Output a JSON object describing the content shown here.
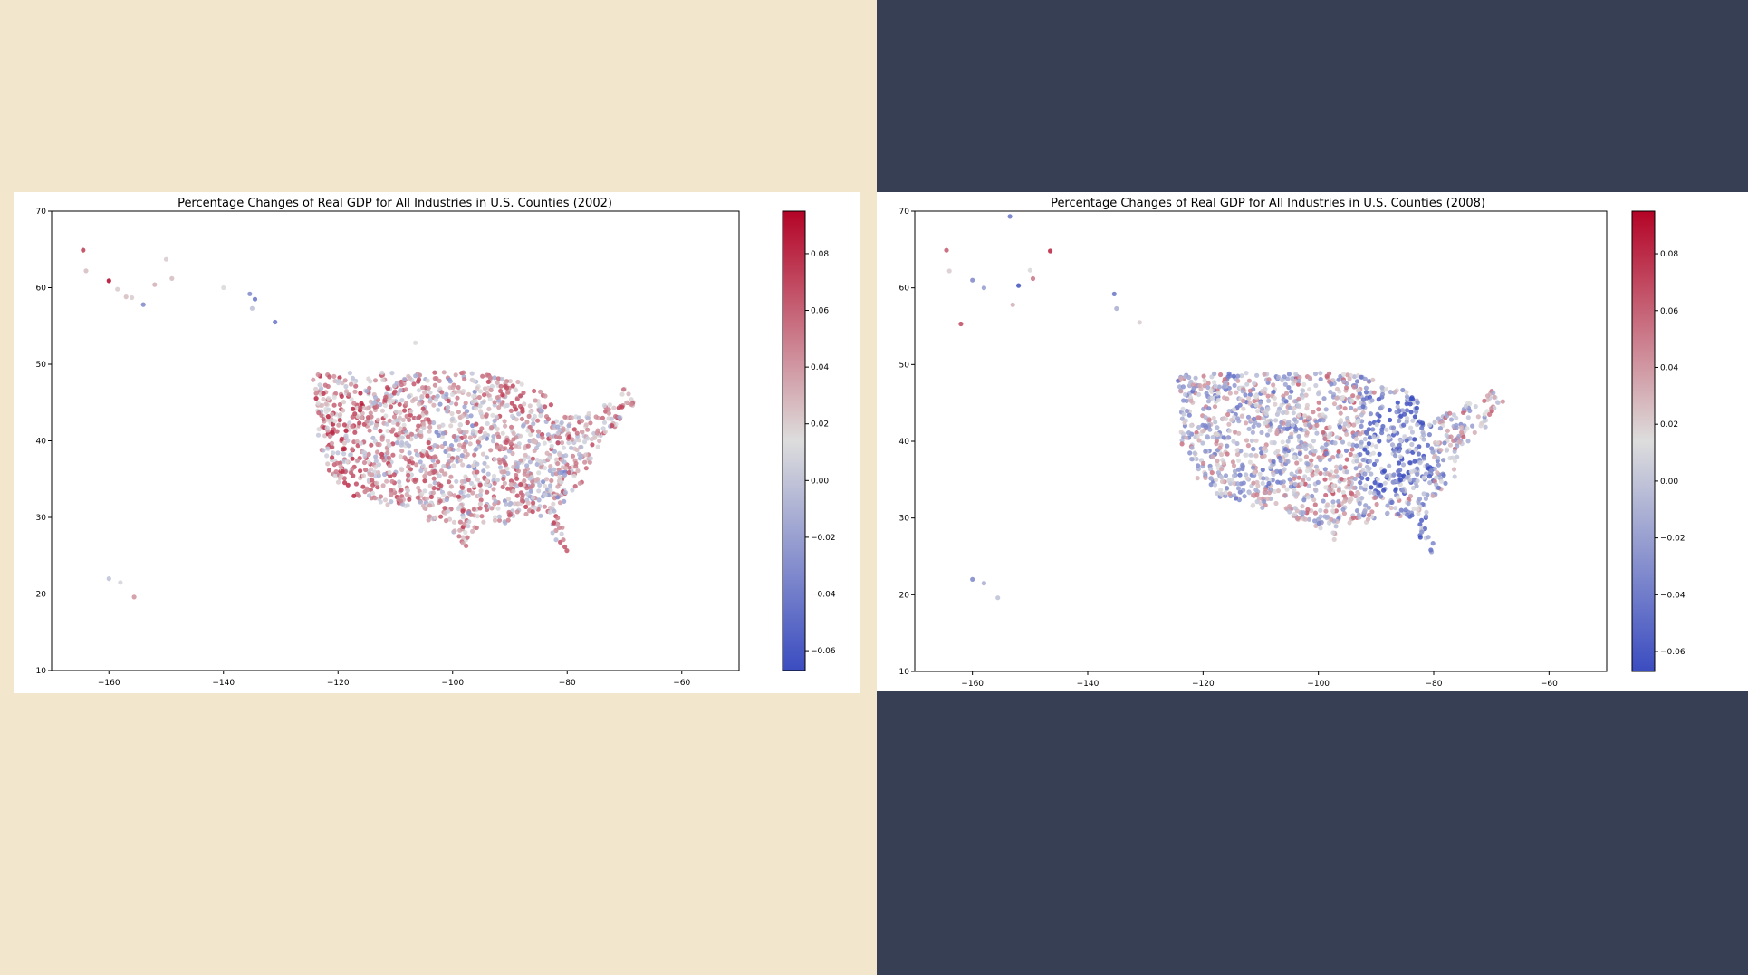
{
  "colors": {
    "background_left": "#f2e6cc",
    "background_right": "#363f53",
    "colormap": "coolwarm",
    "cmap_low": "#3b4cc0",
    "cmap_mid": "#dddddd",
    "cmap_high": "#b40426"
  },
  "chart_data": [
    {
      "type": "scatter",
      "title": "Percentage Changes of Real GDP for All Industries in U.S. Counties (2002)",
      "xlabel": "",
      "ylabel": "",
      "xlim": [
        -170,
        -50
      ],
      "ylim": [
        10,
        70
      ],
      "xticks": [
        -160,
        -140,
        -120,
        -100,
        -80,
        -60
      ],
      "yticks": [
        10,
        20,
        30,
        40,
        50,
        60,
        70
      ],
      "xtick_labels": [
        "−160",
        "−140",
        "−120",
        "−100",
        "−80",
        "−60"
      ],
      "ytick_labels": [
        "10",
        "20",
        "30",
        "40",
        "50",
        "60",
        "70"
      ],
      "colorbar": {
        "range": [
          -0.067,
          0.095
        ],
        "ticks": [
          -0.06,
          -0.04,
          -0.02,
          0.0,
          0.02,
          0.04,
          0.06,
          0.08
        ],
        "tick_labels": [
          "−0.06",
          "−0.04",
          "−0.02",
          "0.00",
          "0.02",
          "0.04",
          "0.06",
          "0.08"
        ]
      },
      "grid": false,
      "points": [
        [
          -164.5,
          64.9,
          0.07
        ],
        [
          -164,
          62.2,
          0.025
        ],
        [
          -160,
          60.9,
          0.09
        ],
        [
          -158.5,
          59.8,
          0.02
        ],
        [
          -157,
          58.8,
          0.025
        ],
        [
          -156,
          58.7,
          0.02
        ],
        [
          -154,
          57.8,
          -0.03
        ],
        [
          -152,
          60.4,
          0.03
        ],
        [
          -150,
          63.7,
          0.02
        ],
        [
          -149,
          61.2,
          0.025
        ],
        [
          -140,
          60.0,
          0.015
        ],
        [
          -135.4,
          59.2,
          -0.03
        ],
        [
          -134.5,
          58.5,
          -0.04
        ],
        [
          -135,
          57.3,
          0.0
        ],
        [
          -131,
          55.5,
          -0.04
        ],
        [
          -106.5,
          52.8,
          0.015
        ],
        [
          -160,
          22.0,
          0.0
        ],
        [
          -158,
          21.5,
          0.01
        ],
        [
          -155.6,
          19.6,
          0.04
        ]
      ],
      "conus": {
        "n": 1500,
        "seed": 2002,
        "median_value": 0.035,
        "notes": "Dense county-level points across the contiguous U.S.; predominantly warm (positive) values with cooler clusters in the Great Plains, Texas/Louisiana and Southeast."
      }
    },
    {
      "type": "scatter",
      "title": "Percentage Changes of Real GDP for All Industries in U.S. Counties (2008)",
      "xlabel": "",
      "ylabel": "",
      "xlim": [
        -170,
        -50
      ],
      "ylim": [
        10,
        70
      ],
      "xticks": [
        -160,
        -140,
        -120,
        -100,
        -80,
        -60
      ],
      "yticks": [
        10,
        20,
        30,
        40,
        50,
        60,
        70
      ],
      "xtick_labels": [
        "−160",
        "−140",
        "−120",
        "−100",
        "−80",
        "−60"
      ],
      "ytick_labels": [
        "10",
        "20",
        "30",
        "40",
        "50",
        "60",
        "70"
      ],
      "colorbar": {
        "range": [
          -0.067,
          0.095
        ],
        "ticks": [
          -0.06,
          -0.04,
          -0.02,
          0.0,
          0.02,
          0.04,
          0.06,
          0.08
        ],
        "tick_labels": [
          "−0.06",
          "−0.04",
          "−0.02",
          "0.00",
          "0.02",
          "0.04",
          "0.06",
          "0.08"
        ]
      },
      "grid": false,
      "points": [
        [
          -164.5,
          64.9,
          0.06
        ],
        [
          -164,
          62.2,
          0.02
        ],
        [
          -162,
          55.3,
          0.065
        ],
        [
          -160,
          61.0,
          -0.03
        ],
        [
          -158,
          60.0,
          -0.02
        ],
        [
          -153.5,
          69.3,
          -0.04
        ],
        [
          -153,
          57.8,
          0.03
        ],
        [
          -152,
          60.3,
          -0.06
        ],
        [
          -150,
          62.3,
          0.015
        ],
        [
          -149.5,
          61.2,
          0.05
        ],
        [
          -146.5,
          64.8,
          0.08
        ],
        [
          -135.4,
          59.2,
          -0.04
        ],
        [
          -135,
          57.3,
          -0.01
        ],
        [
          -131,
          55.5,
          0.02
        ],
        [
          -160,
          22.0,
          -0.03
        ],
        [
          -158,
          21.5,
          -0.01
        ],
        [
          -155.6,
          19.6,
          0.0
        ]
      ],
      "conus": {
        "n": 1500,
        "seed": 2008,
        "median_value": 0.0,
        "notes": "Dense county-level points across the contiguous U.S.; mixed values with strong negative (blue) concentration in the Midwest/Great Lakes and Southeast, warm clusters in the Plains."
      }
    }
  ]
}
